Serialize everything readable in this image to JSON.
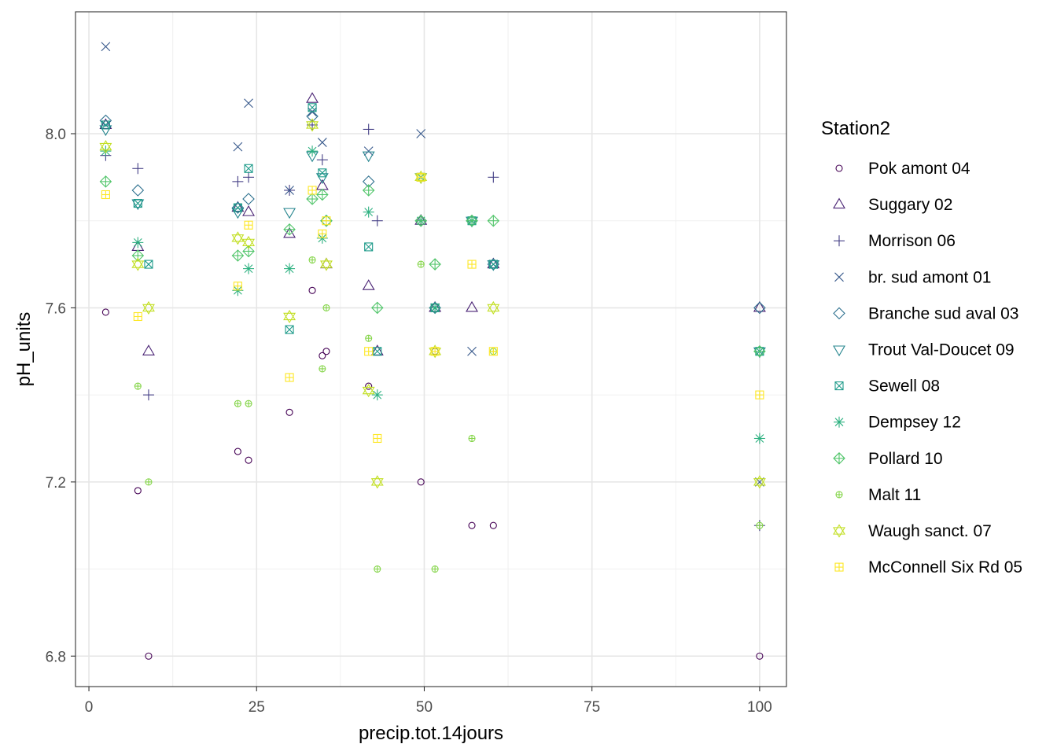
{
  "chart_data": {
    "type": "scatter",
    "xlabel": "precip.tot.14jours",
    "ylabel": "pH_units",
    "xlim": [
      -2,
      104
    ],
    "ylim": [
      6.73,
      8.28
    ],
    "x_ticks": [
      0,
      25,
      50,
      75,
      100
    ],
    "x_tick_labels": [
      "0",
      "25",
      "50",
      "75",
      "100"
    ],
    "y_ticks": [
      6.8,
      7.2,
      7.6,
      8.0
    ],
    "y_tick_labels": [
      "6.8",
      "7.2",
      "7.6",
      "8.0"
    ],
    "grid": true,
    "legend": {
      "title": "Station2",
      "position": "right"
    },
    "series": [
      {
        "name": "Pok amont 04",
        "color": "#440154",
        "shape": "circle",
        "points": [
          [
            2.5,
            7.59
          ],
          [
            7.3,
            7.18
          ],
          [
            8.9,
            6.8
          ],
          [
            22.2,
            7.27
          ],
          [
            23.8,
            7.25
          ],
          [
            29.9,
            7.36
          ],
          [
            33.3,
            7.64
          ],
          [
            34.8,
            7.49
          ],
          [
            35.4,
            7.5
          ],
          [
            41.7,
            7.42
          ],
          [
            49.5,
            7.2
          ],
          [
            51.6,
            7.5
          ],
          [
            57.1,
            7.1
          ],
          [
            60.3,
            7.1
          ],
          [
            100,
            6.8
          ]
        ]
      },
      {
        "name": "Suggary 02",
        "color": "#482173",
        "shape": "triangle-up",
        "points": [
          [
            2.5,
            8.02
          ],
          [
            7.3,
            7.74
          ],
          [
            8.9,
            7.5
          ],
          [
            22.2,
            7.83
          ],
          [
            23.8,
            7.82
          ],
          [
            29.9,
            7.77
          ],
          [
            33.3,
            8.08
          ],
          [
            34.8,
            7.88
          ],
          [
            35.4,
            7.7
          ],
          [
            41.7,
            7.65
          ],
          [
            43,
            7.5
          ],
          [
            49.5,
            7.8
          ],
          [
            51.6,
            7.6
          ],
          [
            57.1,
            7.6
          ],
          [
            60.3,
            7.7
          ],
          [
            100,
            7.6
          ]
        ]
      },
      {
        "name": "Morrison 06",
        "color": "#433E85",
        "shape": "plus",
        "points": [
          [
            2.5,
            7.95
          ],
          [
            7.3,
            7.92
          ],
          [
            8.9,
            7.4
          ],
          [
            22.2,
            7.89
          ],
          [
            23.8,
            7.9
          ],
          [
            29.9,
            7.87
          ],
          [
            33.3,
            8.02
          ],
          [
            34.8,
            7.94
          ],
          [
            41.7,
            8.01
          ],
          [
            43,
            7.8
          ],
          [
            49.5,
            7.8
          ],
          [
            57.1,
            7.8
          ],
          [
            60.3,
            7.9
          ],
          [
            100,
            7.1
          ]
        ]
      },
      {
        "name": "br. sud amont 01",
        "color": "#38598C",
        "shape": "cross",
        "points": [
          [
            2.5,
            8.2
          ],
          [
            22.2,
            7.97
          ],
          [
            23.8,
            8.07
          ],
          [
            29.9,
            7.87
          ],
          [
            33.3,
            8.05
          ],
          [
            34.8,
            7.98
          ],
          [
            41.7,
            7.96
          ],
          [
            49.5,
            8.0
          ],
          [
            51.6,
            7.6
          ],
          [
            57.1,
            7.5
          ],
          [
            60.3,
            7.7
          ],
          [
            100,
            7.2
          ]
        ]
      },
      {
        "name": "Branche sud aval 03",
        "color": "#2D708E",
        "shape": "diamond",
        "points": [
          [
            2.5,
            8.03
          ],
          [
            7.3,
            7.87
          ],
          [
            22.2,
            7.83
          ],
          [
            23.8,
            7.85
          ],
          [
            33.3,
            8.04
          ],
          [
            35.4,
            7.8
          ],
          [
            41.7,
            7.89
          ],
          [
            49.5,
            7.8
          ],
          [
            51.6,
            7.6
          ],
          [
            57.1,
            7.8
          ],
          [
            60.3,
            7.7
          ],
          [
            100,
            7.6
          ]
        ]
      },
      {
        "name": "Trout Val-Doucet 09",
        "color": "#25858E",
        "shape": "triangle-down",
        "points": [
          [
            2.5,
            8.01
          ],
          [
            7.3,
            7.84
          ],
          [
            22.2,
            7.82
          ],
          [
            29.9,
            7.82
          ],
          [
            33.3,
            7.95
          ],
          [
            34.8,
            7.9
          ],
          [
            41.7,
            7.95
          ],
          [
            49.5,
            7.9
          ],
          [
            57.1,
            7.8
          ],
          [
            60.3,
            7.7
          ],
          [
            100,
            7.5
          ]
        ]
      },
      {
        "name": "Sewell 08",
        "color": "#1E9B8A",
        "shape": "square-x",
        "points": [
          [
            2.5,
            8.02
          ],
          [
            7.3,
            7.84
          ],
          [
            8.9,
            7.7
          ],
          [
            22.2,
            7.83
          ],
          [
            23.8,
            7.92
          ],
          [
            29.9,
            7.55
          ],
          [
            33.3,
            8.06
          ],
          [
            34.8,
            7.91
          ],
          [
            41.7,
            7.74
          ],
          [
            43,
            7.5
          ],
          [
            49.5,
            7.9
          ],
          [
            51.6,
            7.6
          ],
          [
            57.1,
            7.8
          ],
          [
            60.3,
            7.7
          ],
          [
            100,
            7.5
          ]
        ]
      },
      {
        "name": "Dempsey 12",
        "color": "#2BB07F",
        "shape": "asterisk",
        "points": [
          [
            2.5,
            7.96
          ],
          [
            7.3,
            7.75
          ],
          [
            22.2,
            7.64
          ],
          [
            23.8,
            7.69
          ],
          [
            29.9,
            7.69
          ],
          [
            33.3,
            7.96
          ],
          [
            34.8,
            7.76
          ],
          [
            41.7,
            7.82
          ],
          [
            43,
            7.4
          ],
          [
            49.5,
            7.8
          ],
          [
            51.6,
            7.6
          ],
          [
            57.1,
            7.8
          ],
          [
            100,
            7.3
          ]
        ]
      },
      {
        "name": "Pollard 10",
        "color": "#51C56A",
        "shape": "circle-plus-diamond",
        "points": [
          [
            2.5,
            7.89
          ],
          [
            7.3,
            7.72
          ],
          [
            22.2,
            7.72
          ],
          [
            23.8,
            7.73
          ],
          [
            29.9,
            7.78
          ],
          [
            33.3,
            7.85
          ],
          [
            34.8,
            7.86
          ],
          [
            35.4,
            7.8
          ],
          [
            41.7,
            7.87
          ],
          [
            43,
            7.6
          ],
          [
            49.5,
            7.8
          ],
          [
            51.6,
            7.7
          ],
          [
            57.1,
            7.8
          ],
          [
            60.3,
            7.8
          ],
          [
            100,
            7.5
          ]
        ]
      },
      {
        "name": "Malt 11",
        "color": "#85D54A",
        "shape": "circle-plus",
        "points": [
          [
            7.3,
            7.42
          ],
          [
            8.9,
            7.2
          ],
          [
            22.2,
            7.38
          ],
          [
            23.8,
            7.38
          ],
          [
            33.3,
            7.71
          ],
          [
            34.8,
            7.46
          ],
          [
            35.4,
            7.6
          ],
          [
            41.7,
            7.53
          ],
          [
            43,
            7.0
          ],
          [
            49.5,
            7.7
          ],
          [
            51.6,
            7.0
          ],
          [
            57.1,
            7.3
          ],
          [
            60.3,
            7.5
          ],
          [
            100,
            7.1
          ]
        ]
      },
      {
        "name": "Waugh sanct. 07",
        "color": "#C2DF23",
        "shape": "star-of-david",
        "points": [
          [
            2.5,
            7.97
          ],
          [
            7.3,
            7.7
          ],
          [
            8.9,
            7.6
          ],
          [
            22.2,
            7.76
          ],
          [
            23.8,
            7.75
          ],
          [
            29.9,
            7.58
          ],
          [
            33.3,
            8.02
          ],
          [
            35.4,
            7.7
          ],
          [
            41.7,
            7.41
          ],
          [
            43,
            7.2
          ],
          [
            49.5,
            7.9
          ],
          [
            51.6,
            7.5
          ],
          [
            60.3,
            7.6
          ],
          [
            100,
            7.2
          ]
        ]
      },
      {
        "name": "McConnell Six Rd 05",
        "color": "#FDE725",
        "shape": "square-plus",
        "points": [
          [
            2.5,
            7.86
          ],
          [
            7.3,
            7.58
          ],
          [
            22.2,
            7.65
          ],
          [
            23.8,
            7.79
          ],
          [
            29.9,
            7.44
          ],
          [
            33.3,
            7.87
          ],
          [
            34.8,
            7.77
          ],
          [
            35.4,
            7.8
          ],
          [
            41.7,
            7.5
          ],
          [
            43,
            7.3
          ],
          [
            49.5,
            7.9
          ],
          [
            51.6,
            7.5
          ],
          [
            57.1,
            7.7
          ],
          [
            60.3,
            7.5
          ],
          [
            100,
            7.4
          ]
        ]
      }
    ]
  }
}
